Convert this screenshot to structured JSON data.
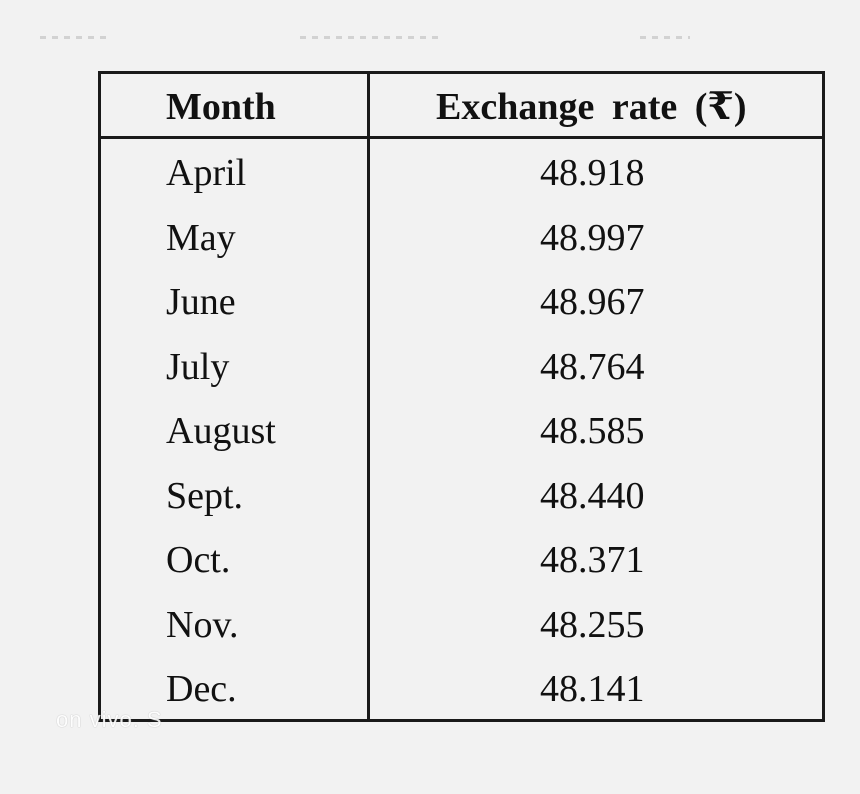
{
  "table": {
    "headers": {
      "month": "Month",
      "rate": "Exchange rate (₹)"
    },
    "rows": [
      {
        "month": "April",
        "rate": "48.918"
      },
      {
        "month": "May",
        "rate": "48.997"
      },
      {
        "month": "June",
        "rate": "48.967"
      },
      {
        "month": "July",
        "rate": "48.764"
      },
      {
        "month": "August",
        "rate": "48.585"
      },
      {
        "month": "Sept.",
        "rate": "48.440"
      },
      {
        "month": "Oct.",
        "rate": "48.371"
      },
      {
        "month": "Nov.",
        "rate": "48.255"
      },
      {
        "month": "Dec.",
        "rate": "48.141"
      }
    ]
  },
  "watermark": "on vivo. S"
}
